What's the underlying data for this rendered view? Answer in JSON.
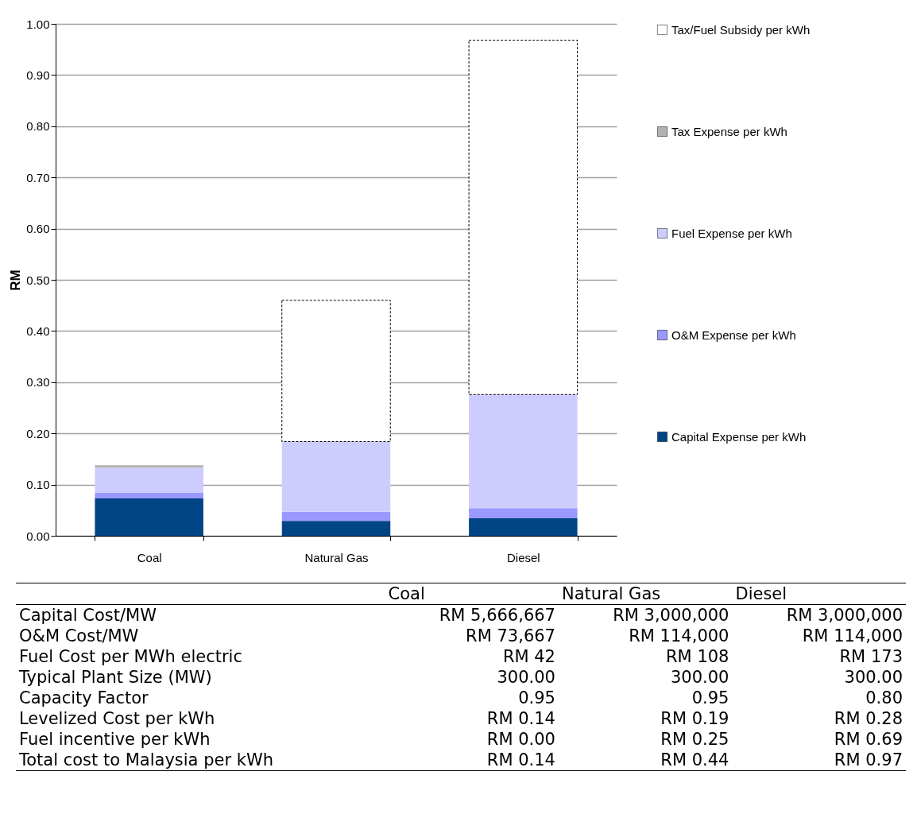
{
  "chart_data": [
    {
      "type": "bar",
      "stacked": true,
      "ylabel": "RM",
      "categories": [
        "Coal",
        "Natural Gas",
        "Diesel"
      ],
      "series": [
        {
          "name": "Capital Expense per kWh",
          "color": "#004586",
          "values": [
            0.073,
            0.029,
            0.034
          ]
        },
        {
          "name": "O&M Expense per kWh",
          "color": "#9999ff",
          "values": [
            0.011,
            0.018,
            0.02
          ]
        },
        {
          "name": "Fuel Expense per kWh",
          "color": "#ccccff",
          "values": [
            0.049,
            0.137,
            0.222
          ]
        },
        {
          "name": "Tax Expense per kWh",
          "color": "#b2b2b2",
          "values": [
            0.005,
            0,
            0
          ]
        },
        {
          "name": "Tax/Fuel Subsidy per kWh",
          "color": "#ffffff",
          "line_style": "dashed",
          "values": [
            0,
            0.276,
            0.692
          ]
        }
      ],
      "ylim": [
        0,
        1
      ],
      "yticks": [
        {
          "value": 0,
          "label": "0.00"
        },
        {
          "value": 0.1,
          "label": "0.10"
        },
        {
          "value": 0.2,
          "label": "0.20"
        },
        {
          "value": 0.3,
          "label": "0.30"
        },
        {
          "value": 0.4,
          "label": "0.40"
        },
        {
          "value": 0.5,
          "label": "0.50"
        },
        {
          "value": 0.6,
          "label": "0.60"
        },
        {
          "value": 0.7,
          "label": "0.70"
        },
        {
          "value": 0.8,
          "label": "0.80"
        },
        {
          "value": 0.9,
          "label": "0.90"
        },
        {
          "value": 1,
          "label": "1.00"
        }
      ],
      "grid": "y",
      "legend": "right"
    },
    {
      "type": "other",
      "categories": [
        "Coal",
        "Natural Gas",
        "Diesel"
      ],
      "y_categories": [
        "Capital Cost/MW",
        "O&M Cost/MW",
        "Fuel Cost per MWh electric",
        "Typical Plant Size (MW)",
        "Capacity Factor",
        "Levelized Cost per kWh",
        "Fuel incentive per kWh",
        "Total cost to Malaysia per kWh"
      ],
      "cell_labels": [
        [
          "RM 5,666,667",
          "RM 3,000,000",
          "RM 3,000,000"
        ],
        [
          "RM 73,667",
          "RM 114,000",
          "RM 114,000"
        ],
        [
          "RM 42",
          "RM 108",
          "RM 173"
        ],
        [
          "300.00",
          "300.00",
          "300.00"
        ],
        [
          "0.95",
          "0.95",
          "0.80"
        ],
        [
          "RM 0.14",
          "RM 0.19",
          "RM 0.28"
        ],
        [
          "RM 0.00",
          "RM 0.25",
          "RM 0.69"
        ],
        [
          "RM 0.14",
          "RM 0.44",
          "RM 0.97"
        ]
      ]
    }
  ]
}
